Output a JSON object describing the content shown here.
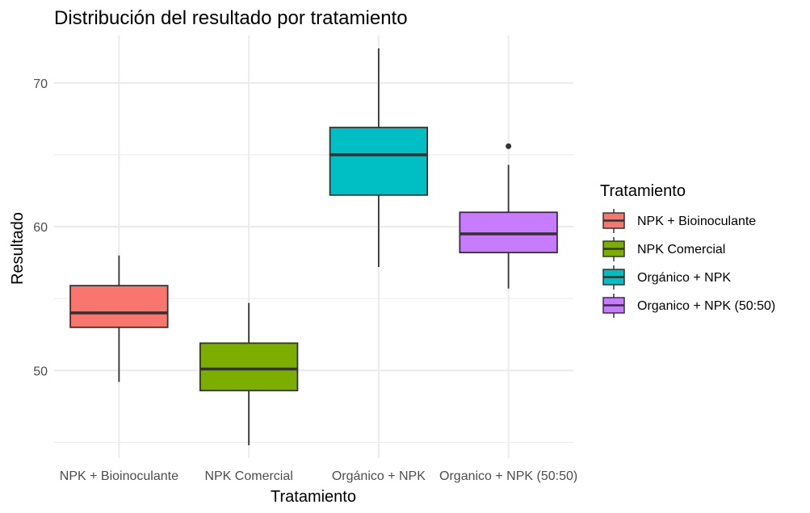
{
  "chart_data": {
    "type": "boxplot",
    "title": "Distribución del resultado por tratamiento",
    "xlabel": "Tratamiento",
    "ylabel": "Resultado",
    "ylim": [
      43.9,
      73.3
    ],
    "yticks": [
      50,
      60,
      70
    ],
    "grid": true,
    "legend_title": "Tratamiento",
    "legend_position": "right",
    "categories": [
      "NPK + Bioinoculante",
      "NPK Comercial",
      "Orgánico + NPK",
      "Organico + NPK (50:50)"
    ],
    "series": [
      {
        "name": "NPK + Bioinoculante",
        "color": "#F8766D",
        "min": 49.2,
        "q1": 53.0,
        "median": 54.0,
        "q3": 55.9,
        "max": 58.0,
        "outliers": []
      },
      {
        "name": "NPK Comercial",
        "color": "#7CAE00",
        "min": 44.8,
        "q1": 48.6,
        "median": 50.1,
        "q3": 51.9,
        "max": 54.7,
        "outliers": []
      },
      {
        "name": "Orgánico + NPK",
        "color": "#00BFC4",
        "min": 57.2,
        "q1": 62.2,
        "median": 65.0,
        "q3": 66.9,
        "max": 72.4,
        "outliers": []
      },
      {
        "name": "Organico + NPK (50:50)",
        "color": "#C77CFF",
        "min": 55.7,
        "q1": 58.2,
        "median": 59.5,
        "q3": 61.0,
        "max": 64.3,
        "outliers": [
          65.6
        ]
      }
    ]
  }
}
